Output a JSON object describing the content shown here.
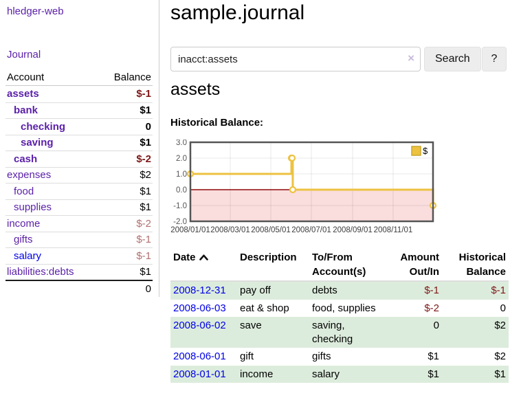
{
  "app": {
    "brand": "hledger-web",
    "nav_journal": "Journal"
  },
  "sidebar": {
    "header": {
      "account": "Account",
      "balance": "Balance"
    },
    "accounts": [
      {
        "name": "assets",
        "level": 1,
        "balance": "$-1",
        "bold": true,
        "negative": "strong"
      },
      {
        "name": "bank",
        "level": 2,
        "balance": "$1",
        "bold": true
      },
      {
        "name": "checking",
        "level": 3,
        "balance": "0",
        "bold": true
      },
      {
        "name": "saving",
        "level": 3,
        "balance": "$1",
        "bold": true
      },
      {
        "name": "cash",
        "level": 2,
        "balance": "$-2",
        "bold": true,
        "negative": "strong"
      },
      {
        "name": "expenses",
        "level": 1,
        "balance": "$2"
      },
      {
        "name": "food",
        "level": 2,
        "balance": "$1"
      },
      {
        "name": "supplies",
        "level": 2,
        "balance": "$1"
      },
      {
        "name": "income",
        "level": 1,
        "balance": "$-2",
        "negative": "soft"
      },
      {
        "name": "gifts",
        "level": 2,
        "balance": "$-1",
        "negative": "soft"
      },
      {
        "name": "salary",
        "level": 2,
        "balance": "$-1",
        "negative": "soft",
        "link_color": "blue"
      },
      {
        "name": "liabilities:debts",
        "level": 1,
        "balance": "$1"
      }
    ],
    "total": "0"
  },
  "header": {
    "title": "sample.journal"
  },
  "search": {
    "value": "inacct:assets",
    "clear_glyph": "×",
    "button_label": "Search",
    "help_label": "?"
  },
  "account_page": {
    "heading": "assets",
    "chart_label": "Historical Balance:"
  },
  "chart_data": {
    "type": "line",
    "title": "Historical Balance",
    "step": true,
    "grid": true,
    "legend_position": "top-right",
    "xlim": [
      "2008-01-01",
      "2008-12-31"
    ],
    "ylim": [
      -2,
      3
    ],
    "x_ticks": [
      "2008/01/01",
      "2008/03/01",
      "2008/05/01",
      "2008/07/01",
      "2008/09/01",
      "2008/11/01"
    ],
    "y_ticks": [
      3.0,
      2.0,
      1.0,
      0.0,
      -1.0,
      -2.0
    ],
    "series": [
      {
        "name": "$",
        "color": "#edc240",
        "points": [
          [
            "2008-01-01",
            1
          ],
          [
            "2008-06-01",
            2
          ],
          [
            "2008-06-02",
            2
          ],
          [
            "2008-06-03",
            0
          ],
          [
            "2008-12-31",
            -1
          ]
        ]
      }
    ],
    "colors": {
      "negative_region": "#fadddd",
      "zero_line": "#8f0a0a",
      "border": "#545454",
      "tick_text": "#545454",
      "marker_fill": "#ffffff"
    }
  },
  "register": {
    "columns": [
      {
        "label": "Date",
        "align": "left",
        "sorted": "asc"
      },
      {
        "label": "Description",
        "align": "left"
      },
      {
        "label": "To/From\nAccount(s)",
        "align": "left"
      },
      {
        "label": "Amount\nOut/In",
        "align": "right"
      },
      {
        "label": "Historical\nBalance",
        "align": "right"
      }
    ],
    "rows": [
      {
        "date": "2008-12-31",
        "description": "pay off",
        "accounts": "debts",
        "amount": "$-1",
        "amount_negative": true,
        "balance": "$-1",
        "balance_negative": true
      },
      {
        "date": "2008-06-03",
        "description": "eat & shop",
        "accounts": "food, supplies",
        "amount": "$-2",
        "amount_negative": true,
        "balance": "0"
      },
      {
        "date": "2008-06-02",
        "description": "save",
        "accounts": "saving, checking",
        "amount": "0",
        "balance": "$2"
      },
      {
        "date": "2008-06-01",
        "description": "gift",
        "accounts": "gifts",
        "amount": "$1",
        "balance": "$2"
      },
      {
        "date": "2008-01-01",
        "description": "income",
        "accounts": "salary",
        "amount": "$1",
        "balance": "$1"
      }
    ]
  }
}
